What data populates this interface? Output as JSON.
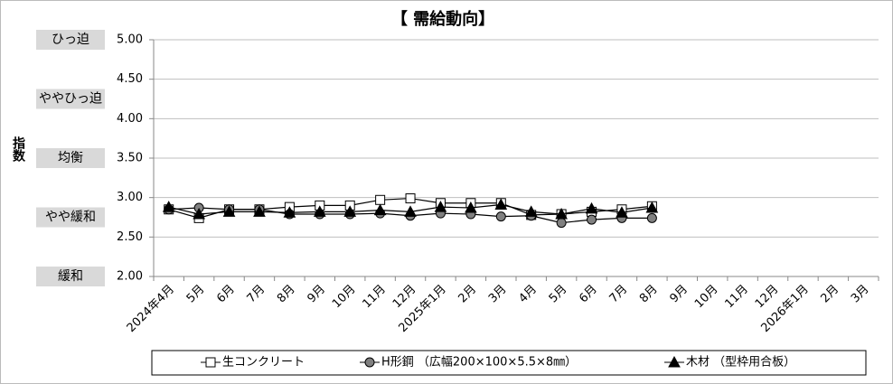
{
  "chart_data": {
    "type": "line",
    "title": "【 需給動向】",
    "y_label": "指数",
    "levels": [
      "ひっ迫",
      "ややひっ迫",
      "均衡",
      "やや緩和",
      "緩和"
    ],
    "categories": [
      "2024年4月",
      "5月",
      "6月",
      "7月",
      "8月",
      "9月",
      "10月",
      "11月",
      "12月",
      "2025年1月",
      "2月",
      "3月",
      "4月",
      "5月",
      "6月",
      "7月",
      "8月",
      "9月",
      "10月",
      "11月",
      "12月",
      "2026年1月",
      "2月",
      "3月"
    ],
    "series": [
      {
        "name": "生コンクリート",
        "color": "#000000",
        "marker": "square",
        "values": [
          2.85,
          2.74,
          2.85,
          2.85,
          2.88,
          2.9,
          2.9,
          2.97,
          2.99,
          2.93,
          2.93,
          2.93,
          2.78,
          2.79,
          2.82,
          2.85,
          2.89,
          null,
          null,
          null,
          null,
          null,
          null,
          null
        ]
      },
      {
        "name": "H形鋼 （広幅200×100×5.5×8㎜）",
        "color": "#000000",
        "marker": "circle",
        "values": [
          2.85,
          2.87,
          2.85,
          2.85,
          2.79,
          2.79,
          2.79,
          2.8,
          2.77,
          2.8,
          2.79,
          2.76,
          2.77,
          2.68,
          2.72,
          2.74,
          2.74,
          null,
          null,
          null,
          null,
          null,
          null,
          null
        ]
      },
      {
        "name": "木材 （型枠用合板）",
        "color": "#000000",
        "marker": "triangle",
        "values": [
          2.88,
          2.79,
          2.82,
          2.82,
          2.81,
          2.82,
          2.82,
          2.84,
          2.82,
          2.88,
          2.87,
          2.91,
          2.82,
          2.79,
          2.86,
          2.81,
          2.87,
          null,
          null,
          null,
          null,
          null,
          null,
          null
        ]
      }
    ],
    "ylim": [
      2,
      5
    ],
    "yticks": [
      {
        "value": 2,
        "label": "2.00"
      },
      {
        "value": 2.5,
        "label": "2.50"
      },
      {
        "value": 3,
        "label": "3.00"
      },
      {
        "value": 3.5,
        "label": "3.50"
      },
      {
        "value": 4,
        "label": "4.00"
      },
      {
        "value": 4.5,
        "label": "4.50"
      },
      {
        "value": 5,
        "label": "5.00"
      }
    ],
    "grid": true
  }
}
